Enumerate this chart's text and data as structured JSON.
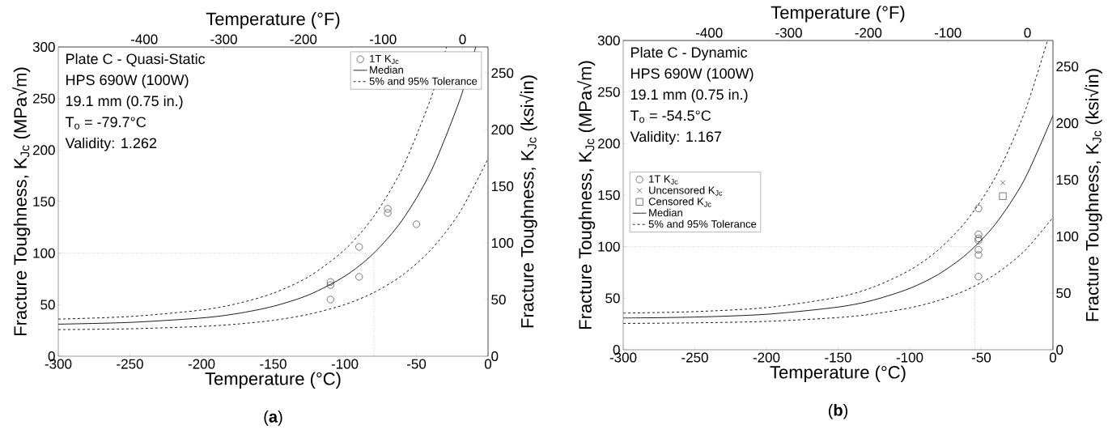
{
  "chart_data": [
    {
      "type": "scatter",
      "xlabel": "Temperature (°C)",
      "x2label": "Temperature (°F)",
      "ylabel": "Fracture Toughness, K$_{Jc}$ (MPa√m)",
      "y2label": "Fracture Toughness, K$_{Jc}$ (ksi√in)",
      "xlim": [
        -300,
        0
      ],
      "xticks": [
        -300,
        -250,
        -200,
        -150,
        -100,
        -50,
        0
      ],
      "ylim": [
        0,
        300
      ],
      "yticks": [
        0,
        50,
        100,
        150,
        200,
        250,
        300
      ],
      "x2lim": [
        -508,
        32
      ],
      "x2ticks": [
        -400,
        -300,
        -200,
        -100,
        0
      ],
      "y2lim": [
        0,
        273
      ],
      "y2ticks": [
        0,
        50,
        100,
        150,
        200,
        250
      ],
      "legend": "top right",
      "grid": false,
      "annotations": [
        "Plate C - Quasi-Static",
        "HPS 690W (100W)",
        "19.1 mm (0.75 in.)",
        "T$_{o}$ = -79.7°C",
        "Validity: 1.262",
        "(**a**)"
      ],
      "ref_lines": [
        {
          "axis": "y",
          "value": 100,
          "line_style": "dotted"
        },
        {
          "axis": "x",
          "value": -79.7,
          "line_style": "dotted"
        }
      ],
      "series": [
        {
          "name": "1T K$_{Jc}$",
          "marker": "circle",
          "color": "#404040",
          "x": [
            -110,
            -110,
            -110,
            -90,
            -90,
            -70,
            -70,
            -50
          ],
          "values": [
            72,
            69,
            55,
            106,
            77,
            143,
            139,
            128
          ]
        },
        {
          "name": "Median",
          "type": "line",
          "line_style": "solid",
          "color": "#000000",
          "x": [
            -300,
            -250,
            -200,
            -175,
            -150,
            -125,
            -100,
            -80,
            -60,
            -40,
            -20,
            -8.6
          ],
          "values": [
            31.1,
            32.8,
            37.1,
            41.4,
            48.4,
            59.6,
            77.6,
            99.6,
            131.8,
            178.8,
            247.6,
            300
          ]
        },
        {
          "name": "5% and 95% Tolerance",
          "type": "line",
          "line_style": "dashed",
          "color": "#000000",
          "x": [
            -300,
            -250,
            -200,
            -175,
            -150,
            -125,
            -100,
            -80,
            -60,
            -40,
            -29
          ],
          "values": [
            36.0,
            38.5,
            44.8,
            51.1,
            61.1,
            77.3,
            103.4,
            135.2,
            181.8,
            249.9,
            300
          ]
        },
        {
          "type": "line",
          "line_style": "dashed",
          "color": "#000000",
          "x": [
            -300,
            -250,
            -200,
            -175,
            -150,
            -125,
            -100,
            -80,
            -60,
            -40,
            -20,
            0
          ],
          "values": [
            25.8,
            26.6,
            28.9,
            31.2,
            34.8,
            40.7,
            50.1,
            61.6,
            78.4,
            103.0,
            139.0,
            191.6
          ]
        }
      ]
    },
    {
      "type": "scatter",
      "xlabel": "Temperature (°C)",
      "x2label": "Temperature (°F)",
      "ylabel": "Fracture Toughness, K$_{Jc}$ (MPa√m)",
      "y2label": "Fracture Toughness, K$_{Jc}$ (ksi√in)",
      "xlim": [
        -300,
        0
      ],
      "xticks": [
        -300,
        -250,
        -200,
        -150,
        -100,
        -50,
        0
      ],
      "ylim": [
        0,
        300
      ],
      "yticks": [
        0,
        50,
        100,
        150,
        200,
        250,
        300
      ],
      "x2lim": [
        -508,
        32
      ],
      "x2ticks": [
        -400,
        -300,
        -200,
        -100,
        0
      ],
      "y2lim": [
        0,
        273
      ],
      "y2ticks": [
        0,
        50,
        100,
        150,
        200,
        250
      ],
      "legend": "left",
      "grid": false,
      "annotations": [
        "Plate C - Dynamic",
        "HPS 690W (100W)",
        "19.1 mm (0.75 in.)",
        "T$_{o}$ = -54.5°C",
        "Validity: 1.167",
        "(**b**)"
      ],
      "ref_lines": [
        {
          "axis": "y",
          "value": 100,
          "line_style": "dotted"
        },
        {
          "axis": "x",
          "value": -54.5,
          "line_style": "dotted"
        }
      ],
      "series": [
        {
          "name": "1T K$_{Jc}$",
          "marker": "circle",
          "color": "#404040",
          "x": [
            -52,
            -52,
            -52,
            -52,
            -52,
            -52,
            -52
          ],
          "values": [
            137,
            112,
            108,
            106,
            97,
            92,
            71
          ]
        },
        {
          "name": "Uncensored K$_{Jc}$",
          "marker": "cross",
          "color": "#404040",
          "x": [
            -35
          ],
          "values": [
            162
          ]
        },
        {
          "name": "Censored K$_{Jc}$",
          "marker": "square",
          "color": "#404040",
          "x": [
            -35
          ],
          "values": [
            149
          ]
        },
        {
          "name": "Median",
          "type": "line",
          "line_style": "solid",
          "color": "#000000",
          "x": [
            -300,
            -250,
            -200,
            -150,
            -125,
            -100,
            -80,
            -60,
            -40,
            -20,
            0
          ],
          "values": [
            30.7,
            31.7,
            34.4,
            41.4,
            48.3,
            59.5,
            73.1,
            93.1,
            122.2,
            164.8,
            227.2
          ]
        },
        {
          "name": "5% and 95% Tolerance",
          "type": "line",
          "line_style": "dashed",
          "color": "#000000",
          "x": [
            -300,
            -250,
            -200,
            -150,
            -125,
            -100,
            -80,
            -60,
            -40,
            -20,
            -3.8
          ],
          "values": [
            35.5,
            37.0,
            40.9,
            51.0,
            61.0,
            77.2,
            96.9,
            125.8,
            167.9,
            229.6,
            300
          ]
        },
        {
          "type": "line",
          "line_style": "dashed",
          "color": "#000000",
          "x": [
            -300,
            -250,
            -200,
            -150,
            -125,
            -100,
            -80,
            -60,
            -40,
            -20,
            0
          ],
          "values": [
            25.5,
            26.1,
            27.5,
            31.2,
            34.8,
            40.6,
            47.7,
            58.2,
            73.4,
            95.7,
            128.3
          ]
        }
      ]
    }
  ]
}
